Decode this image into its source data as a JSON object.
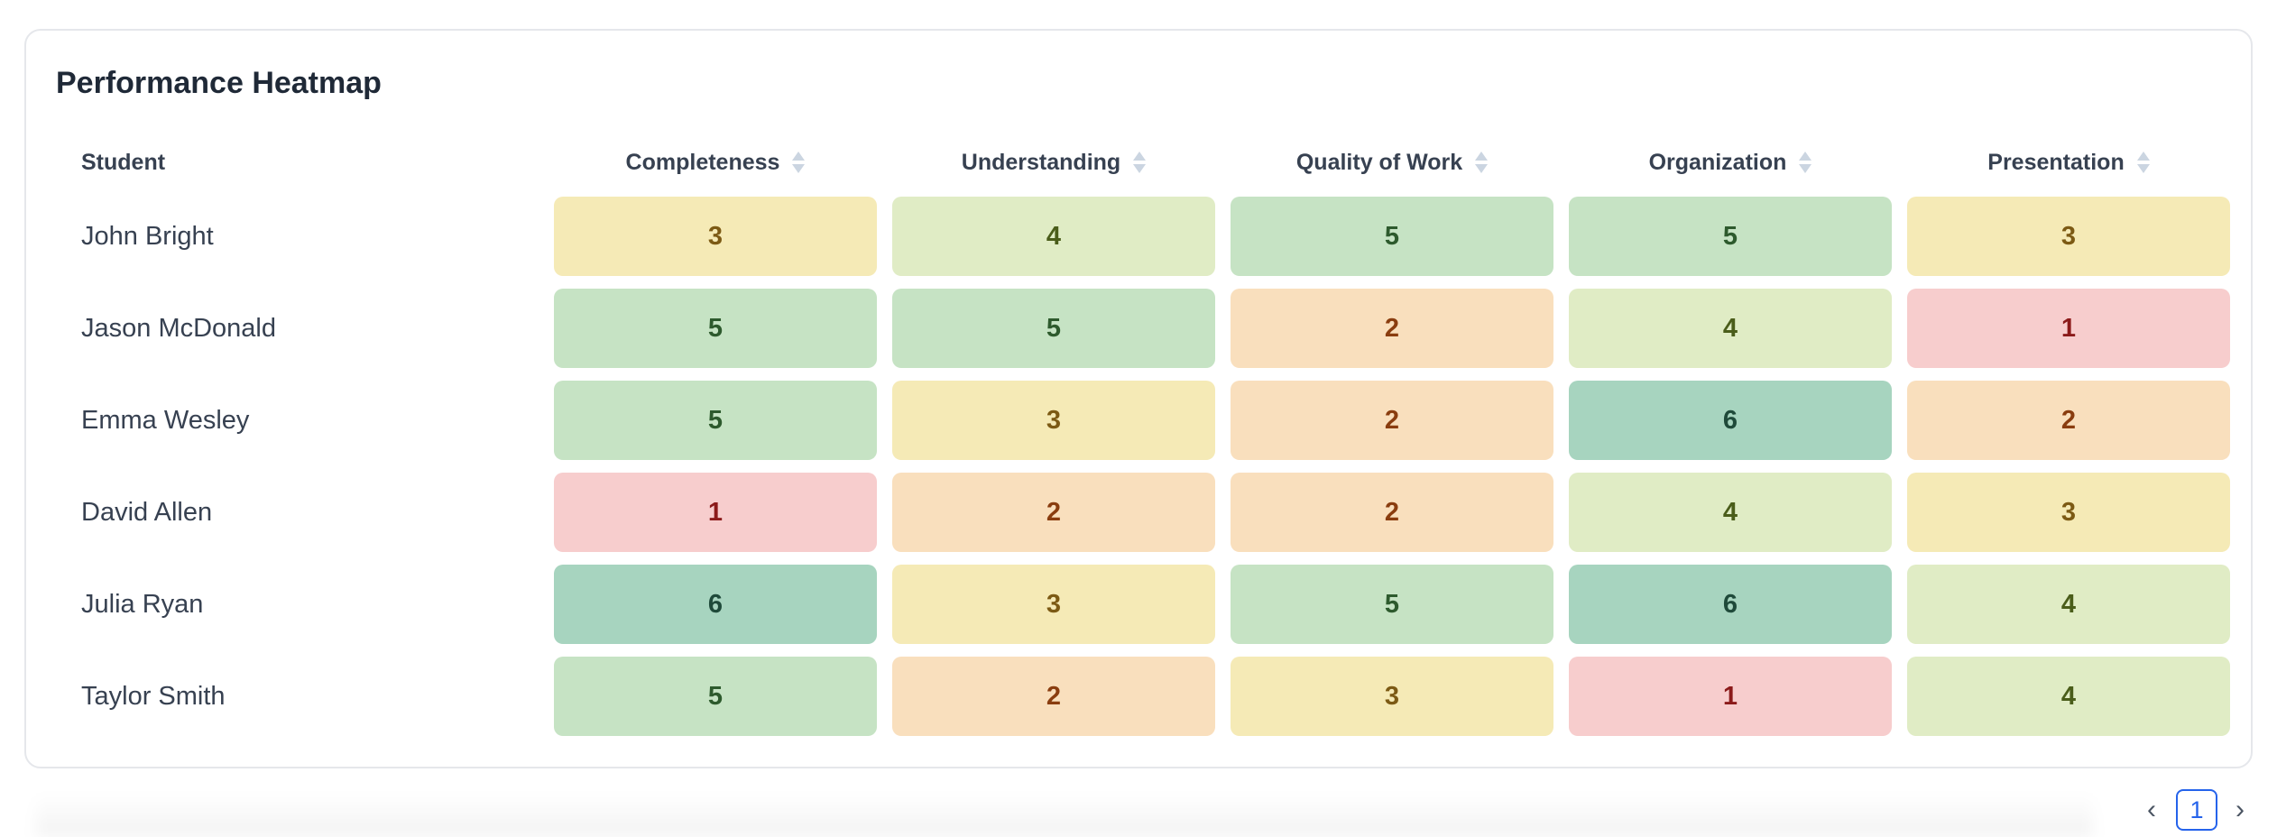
{
  "card": {
    "title": "Performance Heatmap"
  },
  "table": {
    "student_header": "Student",
    "columns": [
      {
        "label": "Completeness"
      },
      {
        "label": "Understanding"
      },
      {
        "label": "Quality of Work"
      },
      {
        "label": "Organization"
      },
      {
        "label": "Presentation"
      }
    ],
    "rows": [
      {
        "name": "John Bright",
        "scores": [
          "3",
          "4",
          "5",
          "5",
          "3"
        ]
      },
      {
        "name": "Jason McDonald",
        "scores": [
          "5",
          "5",
          "2",
          "4",
          "1"
        ]
      },
      {
        "name": "Emma Wesley",
        "scores": [
          "5",
          "3",
          "2",
          "6",
          "2"
        ]
      },
      {
        "name": "David Allen",
        "scores": [
          "1",
          "2",
          "2",
          "4",
          "3"
        ]
      },
      {
        "name": "Julia Ryan",
        "scores": [
          "6",
          "3",
          "5",
          "6",
          "4"
        ]
      },
      {
        "name": "Taylor Smith",
        "scores": [
          "5",
          "2",
          "3",
          "1",
          "4"
        ]
      }
    ]
  },
  "score_colors": {
    "1": "#f7cdcd",
    "2": "#f9dfbd",
    "3": "#f5eab6",
    "4": "#e0ecc5",
    "5": "#c6e3c4",
    "6": "#a7d4bf"
  },
  "pagination": {
    "prev_icon": "chevron-left-icon",
    "next_icon": "chevron-right-icon",
    "prev_glyph": "‹",
    "next_glyph": "›",
    "current_page": "1"
  }
}
